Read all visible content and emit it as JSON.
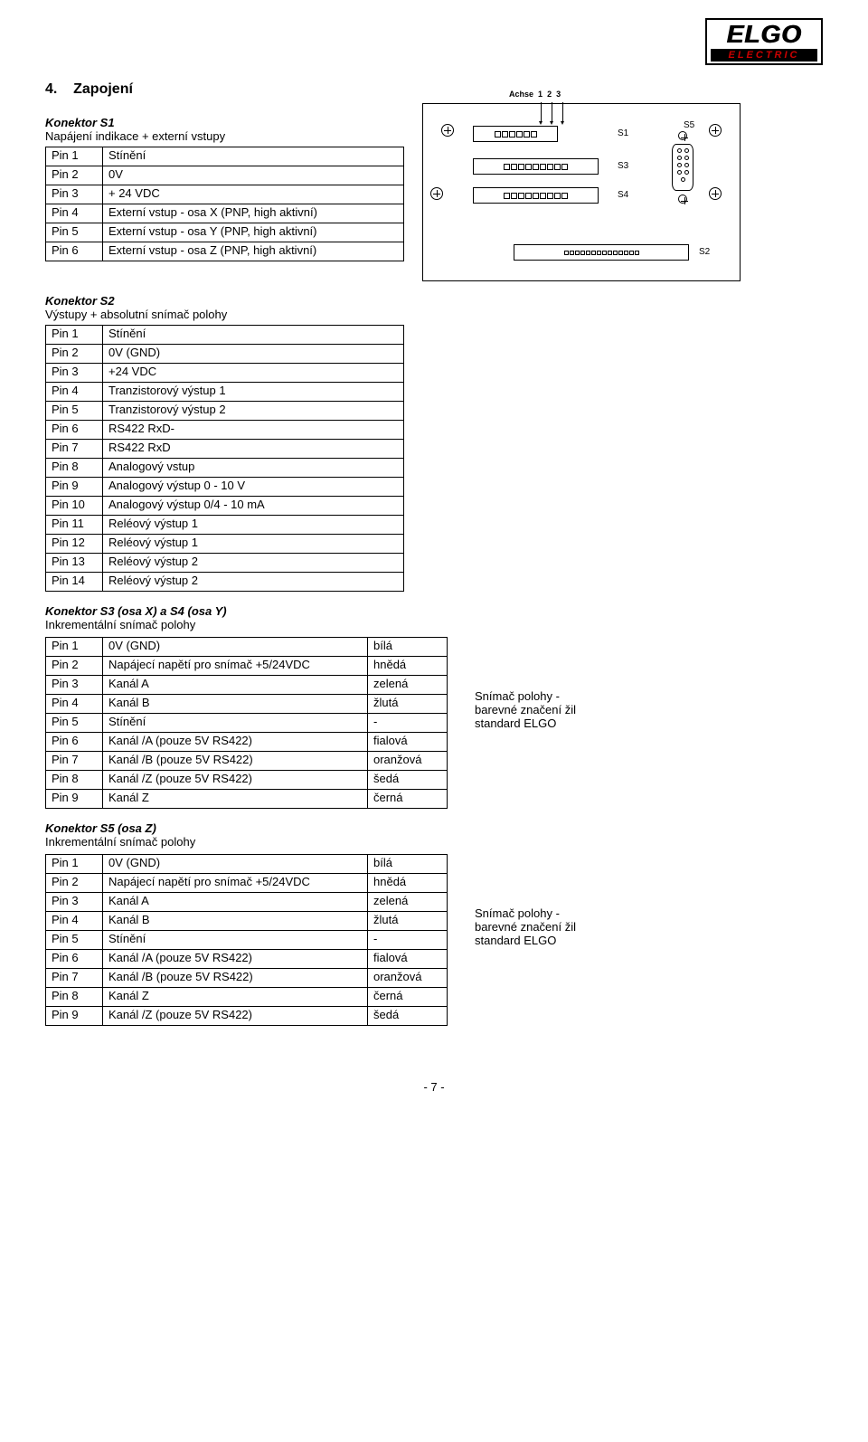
{
  "logo": {
    "line1": "ELGO",
    "line2": "ELECTRIC"
  },
  "section": {
    "number": "4.",
    "title": "Zapojení"
  },
  "s1": {
    "name": "Konektor S1",
    "desc": "Napájení indikace + externí vstupy",
    "rows": [
      [
        "Pin 1",
        "Stínění"
      ],
      [
        "Pin 2",
        "0V"
      ],
      [
        "Pin 3",
        "+ 24 VDC"
      ],
      [
        "Pin 4",
        "Externí vstup - osa X (PNP, high aktivní)"
      ],
      [
        "Pin 5",
        "Externí vstup - osa Y (PNP, high aktivní)"
      ],
      [
        "Pin 6",
        "Externí vstup - osa Z (PNP, high aktivní)"
      ]
    ]
  },
  "s2": {
    "name": "Konektor S2",
    "desc": "Výstupy + absolutní snímač polohy",
    "rows": [
      [
        "Pin 1",
        "Stínění"
      ],
      [
        "Pin 2",
        "0V (GND)"
      ],
      [
        "Pin 3",
        "+24 VDC"
      ],
      [
        "Pin 4",
        "Tranzistorový výstup 1"
      ],
      [
        "Pin 5",
        "Tranzistorový výstup 2"
      ],
      [
        "Pin 6",
        "RS422 RxD-"
      ],
      [
        "Pin 7",
        "RS422 RxD"
      ],
      [
        "Pin 8",
        "Analogový vstup"
      ],
      [
        "Pin 9",
        "Analogový výstup 0 - 10 V"
      ],
      [
        "Pin 10",
        "Analogový výstup 0/4 - 10 mA"
      ],
      [
        "Pin 11",
        "Reléový výstup 1"
      ],
      [
        "Pin 12",
        "Reléový výstup 1"
      ],
      [
        "Pin 13",
        "Reléový výstup 2"
      ],
      [
        "Pin 14",
        "Reléový výstup 2"
      ]
    ]
  },
  "s3": {
    "name": "Konektor S3 (osa X) a S4 (osa Y)",
    "desc": "Inkrementální snímač polohy",
    "rows": [
      [
        "Pin 1",
        "0V (GND)",
        "bílá"
      ],
      [
        "Pin 2",
        "Napájecí napětí pro snímač +5/24VDC",
        "hnědá"
      ],
      [
        "Pin 3",
        "Kanál A",
        "zelená"
      ],
      [
        "Pin 4",
        "Kanál B",
        "žlutá"
      ],
      [
        "Pin 5",
        "Stínění",
        "-"
      ],
      [
        "Pin 6",
        "Kanál /A (pouze 5V RS422)",
        "fialová"
      ],
      [
        "Pin 7",
        "Kanál /B (pouze 5V RS422)",
        "oranžová"
      ],
      [
        "Pin 8",
        "Kanál /Z (pouze 5V RS422)",
        "šedá"
      ],
      [
        "Pin 9",
        "Kanál Z",
        "černá"
      ]
    ],
    "note": "Snímač polohy -\nbarevné značení žil\nstandard ELGO"
  },
  "s5": {
    "name": "Konektor S5 (osa Z)",
    "desc": "Inkrementální snímač polohy",
    "rows": [
      [
        "Pin 1",
        "0V (GND)",
        "bílá"
      ],
      [
        "Pin 2",
        "Napájecí napětí pro snímač +5/24VDC",
        "hnědá"
      ],
      [
        "Pin 3",
        "Kanál A",
        "zelená"
      ],
      [
        "Pin 4",
        "Kanál B",
        "žlutá"
      ],
      [
        "Pin 5",
        "Stínění",
        "-"
      ],
      [
        "Pin 6",
        "Kanál /A (pouze 5V RS422)",
        "fialová"
      ],
      [
        "Pin 7",
        "Kanál /B (pouze 5V RS422)",
        "oranžová"
      ],
      [
        "Pin 8",
        "Kanál Z",
        "černá"
      ],
      [
        "Pin 9",
        "Kanál /Z (pouze 5V RS422)",
        "šedá"
      ]
    ],
    "note": "Snímač polohy -\nbarevné značení žil\nstandard ELGO"
  },
  "diagram": {
    "achse": "Achse",
    "nums": [
      "1",
      "2",
      "3"
    ],
    "labels": {
      "s1": "S1",
      "s2": "S2",
      "s3": "S3",
      "s4": "S4",
      "s5": "S5"
    }
  },
  "footer": "- 7 -"
}
